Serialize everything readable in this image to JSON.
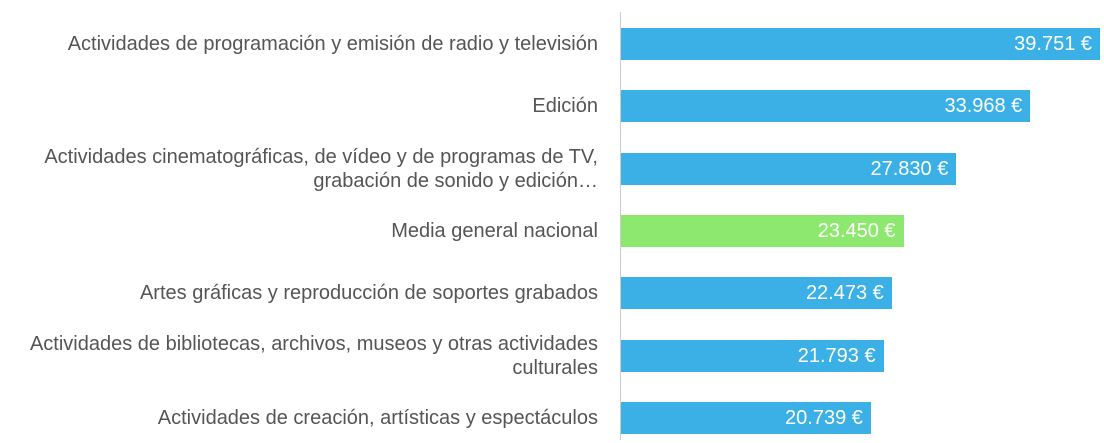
{
  "chart_data": {
    "type": "hbar",
    "categories": [
      "Actividades de programación y emisión de radio y televisión",
      "Edición",
      "Actividades cinematográficas, de vídeo y de programas de TV, grabación de sonido y edición…",
      "Media general nacional",
      "Artes gráficas y reproducción de soportes grabados",
      "Actividades de bibliotecas, archivos, museos y otras actividades culturales",
      "Actividades de creación, artísticas y espectáculos"
    ],
    "values": [
      39751,
      33968,
      27830,
      23450,
      22473,
      21793,
      20739
    ],
    "value_labels": [
      "39.751 €",
      "33.968 €",
      "27.830 €",
      "23.450 €",
      "22.473 €",
      "21.793 €",
      "20.739 €"
    ],
    "colors": [
      "#3bb0e6",
      "#3bb0e6",
      "#3bb0e6",
      "#8de870",
      "#3bb0e6",
      "#3bb0e6",
      "#3bb0e6"
    ]
  }
}
